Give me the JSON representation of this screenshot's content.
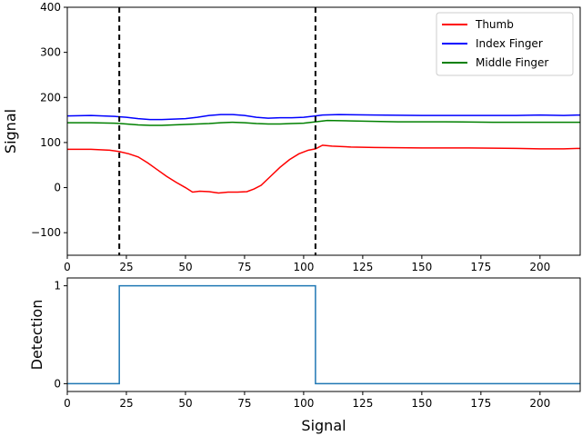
{
  "colors": {
    "thumb": "#ff0000",
    "index": "#0000ff",
    "middle": "#008000",
    "detection": "#1f77b4",
    "marker": "#000000"
  },
  "chart_data": [
    {
      "type": "line",
      "title": "",
      "xlabel": "",
      "ylabel": "Signal",
      "xlim": [
        0,
        217
      ],
      "ylim": [
        -150,
        400
      ],
      "xticks": [
        0,
        25,
        50,
        75,
        100,
        125,
        150,
        175,
        200
      ],
      "yticks": [
        -100,
        0,
        100,
        200,
        300,
        400
      ],
      "legend_position": "top-right",
      "vlines": [
        22,
        105
      ],
      "series": [
        {
          "name": "Thumb",
          "color_key": "thumb",
          "x": [
            0,
            10,
            18,
            22,
            26,
            30,
            34,
            38,
            42,
            46,
            50,
            53,
            56,
            60,
            64,
            68,
            72,
            76,
            79,
            82,
            86,
            90,
            94,
            98,
            102,
            105,
            108,
            112,
            120,
            130,
            150,
            170,
            190,
            200,
            210,
            217
          ],
          "y": [
            85,
            85,
            83,
            80,
            75,
            68,
            55,
            40,
            25,
            12,
            0,
            -10,
            -8,
            -9,
            -12,
            -10,
            -10,
            -9,
            -3,
            5,
            25,
            45,
            62,
            75,
            83,
            86,
            94,
            92,
            90,
            89,
            88,
            88,
            87,
            86,
            86,
            87
          ]
        },
        {
          "name": "Index Finger",
          "color_key": "index",
          "x": [
            0,
            10,
            20,
            25,
            30,
            35,
            40,
            45,
            50,
            55,
            60,
            65,
            70,
            75,
            80,
            85,
            90,
            95,
            100,
            105,
            108,
            115,
            130,
            150,
            170,
            190,
            200,
            210,
            217
          ],
          "y": [
            159,
            160,
            158,
            156,
            153,
            151,
            151,
            152,
            153,
            156,
            160,
            162,
            162,
            160,
            156,
            154,
            155,
            155,
            156,
            159,
            161,
            162,
            161,
            160,
            160,
            160,
            161,
            160,
            161
          ]
        },
        {
          "name": "Middle Finger",
          "color_key": "middle",
          "x": [
            0,
            10,
            20,
            25,
            30,
            35,
            40,
            45,
            50,
            55,
            60,
            65,
            70,
            75,
            80,
            85,
            90,
            95,
            100,
            105,
            110,
            120,
            140,
            160,
            180,
            200,
            210,
            217
          ],
          "y": [
            144,
            144,
            143,
            141,
            139,
            138,
            138,
            139,
            140,
            141,
            142,
            144,
            145,
            144,
            142,
            141,
            141,
            142,
            143,
            146,
            149,
            148,
            146,
            146,
            145,
            145,
            145,
            145
          ]
        }
      ]
    },
    {
      "type": "line",
      "title": "",
      "xlabel": "Signal",
      "ylabel": "Detection",
      "xlim": [
        0,
        217
      ],
      "ylim": [
        -0.08,
        1.08
      ],
      "xticks": [
        0,
        25,
        50,
        75,
        100,
        125,
        150,
        175,
        200
      ],
      "yticks": [
        0,
        1
      ],
      "step": true,
      "series": [
        {
          "color_key": "detection",
          "x": [
            0,
            22,
            22,
            105,
            105,
            217
          ],
          "y": [
            0,
            0,
            1,
            1,
            0,
            0
          ]
        }
      ]
    }
  ]
}
